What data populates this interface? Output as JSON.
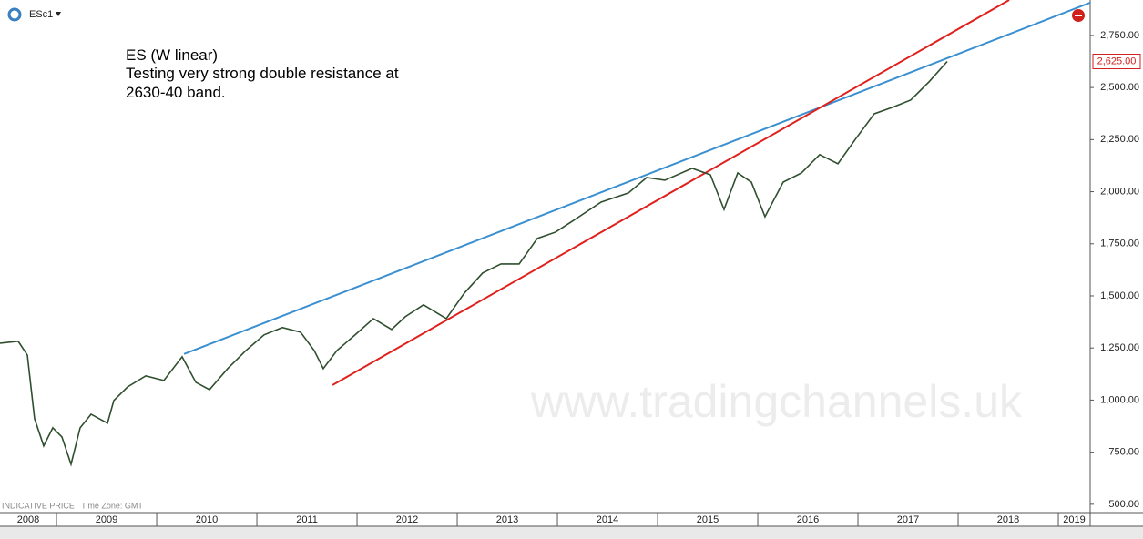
{
  "chart_data": {
    "type": "line",
    "symbol": "ESc1",
    "annotation": [
      "ES (W linear)",
      "Testing very strong double resistance at",
      "2630-40 band."
    ],
    "watermark": "www.tradingchannels.uk",
    "footer_note": "INDICATIVE PRICE   Time Zone: GMT",
    "x": [
      2008.436,
      2008.618,
      2008.709,
      2008.781,
      2008.872,
      2008.963,
      2009.054,
      2009.145,
      2009.236,
      2009.345,
      2009.509,
      2009.572,
      2009.709,
      2009.891,
      2010.072,
      2010.254,
      2010.391,
      2010.527,
      2010.709,
      2010.891,
      2011.072,
      2011.254,
      2011.436,
      2011.572,
      2011.663,
      2011.8,
      2011.981,
      2012.163,
      2012.345,
      2012.481,
      2012.663,
      2012.891,
      2013.072,
      2013.254,
      2013.436,
      2013.618,
      2013.8,
      2013.981,
      2014.163,
      2014.436,
      2014.709,
      2014.891,
      2015.072,
      2015.345,
      2015.527,
      2015.663,
      2015.8,
      2015.936,
      2016.072,
      2016.254,
      2016.436,
      2016.618,
      2016.8,
      2016.981,
      2017.163,
      2017.345,
      2017.527,
      2017.709,
      2017.891
    ],
    "series": [
      {
        "color": "#2f4f2f",
        "values": [
          1273,
          1282,
          1216,
          911,
          780,
          867,
          823,
          692,
          867,
          932,
          889,
          998,
          1063,
          1116,
          1094,
          1208,
          1085,
          1050,
          1151,
          1238,
          1313,
          1348,
          1326,
          1238,
          1151,
          1238,
          1313,
          1391,
          1339,
          1400,
          1457,
          1391,
          1514,
          1610,
          1653,
          1653,
          1776,
          1806,
          1863,
          1950,
          1994,
          2068,
          2055,
          2112,
          2081,
          1915,
          2090,
          2046,
          1880,
          2046,
          2090,
          2178,
          2134,
          2256,
          2374,
          2405,
          2440,
          2527,
          2625
        ]
      }
    ],
    "last_price": {
      "value": 2625,
      "label": "2,625.00"
    },
    "trendlines": [
      {
        "color": "#3a8fd0",
        "x": [
          2010.273,
          2019.318
        ],
        "values": [
          1221,
          2907
        ]
      },
      {
        "color": "#e0201c",
        "x": [
          2011.755,
          2018.51
        ],
        "values": [
          1072,
          2920
        ]
      }
    ],
    "xlim": [
      2008.436,
      2019.318
    ],
    "xticks": [
      2009,
      2010,
      2011,
      2012,
      2013,
      2014,
      2015,
      2016,
      2017,
      2018,
      2019
    ],
    "year_labels": [
      2008,
      2009,
      2010,
      2011,
      2012,
      2013,
      2014,
      2015,
      2016,
      2017,
      2018,
      2019
    ],
    "ylim": [
      460,
      2920
    ],
    "yticks": [
      {
        "value": 500,
        "label": "500.00"
      },
      {
        "value": 750,
        "label": "750.00"
      },
      {
        "value": 1000,
        "label": "1,000.00"
      },
      {
        "value": 1250,
        "label": "1,250.00"
      },
      {
        "value": 1500,
        "label": "1,500.00"
      },
      {
        "value": 1750,
        "label": "1,750.00"
      },
      {
        "value": 2000,
        "label": "2,000.00"
      },
      {
        "value": 2250,
        "label": "2,250.00"
      },
      {
        "value": 2500,
        "label": "2,500.00"
      },
      {
        "value": 2750,
        "label": "2,750.00"
      }
    ]
  }
}
